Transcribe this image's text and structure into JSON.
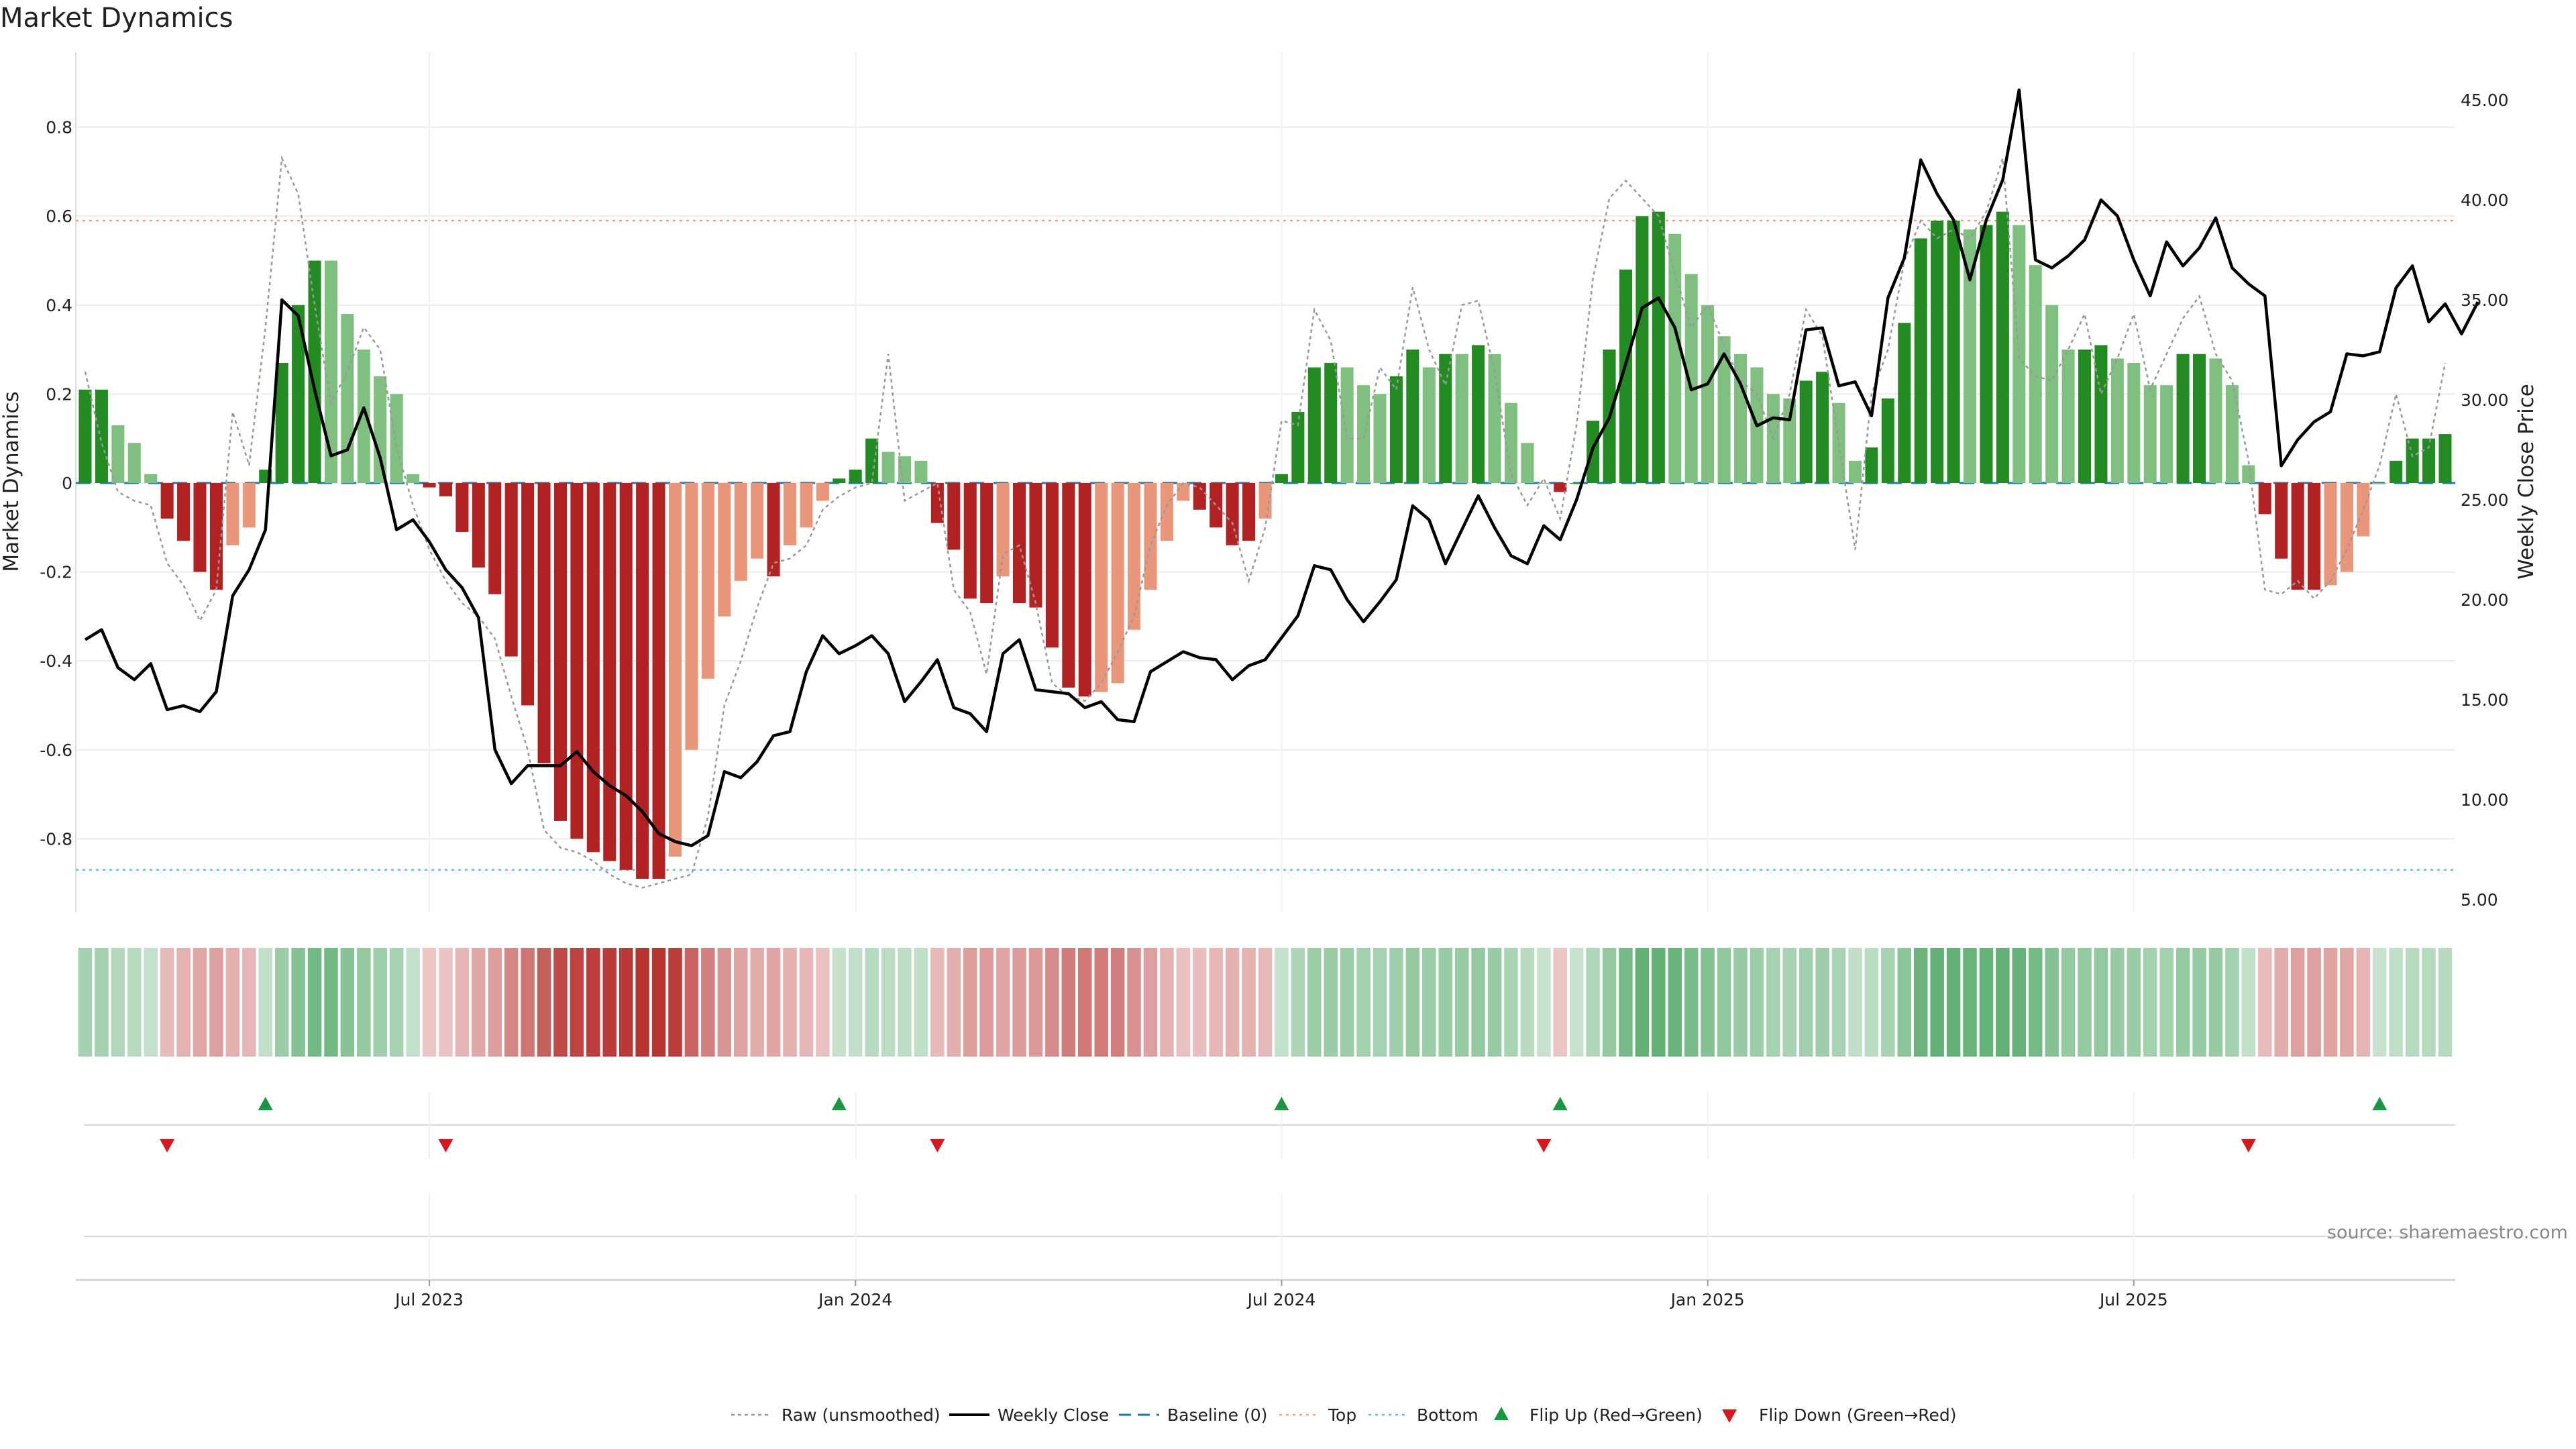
{
  "chart_data": {
    "type": "bar",
    "title": "Market Dynamics",
    "ylabel_left": "Market Dynamics",
    "ylabel_right": "Weekly Close Price",
    "source": "source: sharemaestro.com",
    "ylim_left": [
      -0.97,
      0.97
    ],
    "ylim_right": [
      4.0,
      47.0
    ],
    "left_ticks": [
      "0.8",
      "0.6",
      "0.4",
      "0.2",
      "0",
      "-0.2",
      "-0.4",
      "-0.6",
      "-0.8"
    ],
    "right_ticks": [
      "45.00",
      "40.00",
      "35.00",
      "30.00",
      "25.00",
      "20.00",
      "15.00",
      "10.00",
      "5.00"
    ],
    "x_tick_labels": [
      "Jul 2023",
      "Jan 2024",
      "Jul 2024",
      "Jan 2025",
      "Jul 2025"
    ],
    "x_tick_weeks": [
      21,
      47,
      73,
      99,
      125
    ],
    "top_level": 0.59,
    "bottom_level": -0.87,
    "grid": true,
    "legend_position": "bottom-center",
    "legend": [
      {
        "label": "Raw (unsmoothed)",
        "kind": "dotted-gray"
      },
      {
        "label": "Weekly Close",
        "kind": "solid-black"
      },
      {
        "label": "Baseline (0)",
        "kind": "dashed-blue"
      },
      {
        "label": "Top",
        "kind": "dotted-orange"
      },
      {
        "label": "Bottom",
        "kind": "dotted-cyan"
      },
      {
        "label": "Flip Up (Red→Green)",
        "kind": "triangle-up-green"
      },
      {
        "label": "Flip Down (Green→Red)",
        "kind": "triangle-down-red"
      }
    ],
    "colors": {
      "strong_green": "#228b22",
      "light_green": "#7fbf7f",
      "strong_red": "#b22222",
      "light_red": "#e9967a",
      "close_line": "#000000",
      "raw_line": "#999999",
      "top_line": "#f4a582",
      "bottom_line": "#5fc6c9",
      "baseline": "#1f77b4",
      "flip_up": "#1a9641",
      "flip_down": "#d7191c"
    },
    "momentum": [
      0.21,
      0.21,
      0.13,
      0.09,
      0.02,
      -0.08,
      -0.13,
      -0.2,
      -0.24,
      -0.14,
      -0.1,
      0.03,
      0.27,
      0.4,
      0.5,
      0.5,
      0.38,
      0.3,
      0.24,
      0.2,
      0.02,
      -0.01,
      -0.03,
      -0.11,
      -0.19,
      -0.25,
      -0.39,
      -0.5,
      -0.63,
      -0.76,
      -0.8,
      -0.83,
      -0.85,
      -0.87,
      -0.89,
      -0.89,
      -0.84,
      -0.6,
      -0.44,
      -0.3,
      -0.22,
      -0.17,
      -0.21,
      -0.14,
      -0.1,
      -0.04,
      0.01,
      0.03,
      0.1,
      0.07,
      0.06,
      0.05,
      -0.09,
      -0.15,
      -0.26,
      -0.27,
      -0.21,
      -0.27,
      -0.28,
      -0.37,
      -0.46,
      -0.48,
      -0.47,
      -0.45,
      -0.33,
      -0.24,
      -0.13,
      -0.04,
      -0.06,
      -0.1,
      -0.14,
      -0.13,
      -0.08,
      0.02,
      0.16,
      0.26,
      0.27,
      0.26,
      0.22,
      0.2,
      0.24,
      0.3,
      0.26,
      0.29,
      0.29,
      0.31,
      0.29,
      0.18,
      0.09,
      0.0,
      -0.02,
      0.0,
      0.14,
      0.3,
      0.48,
      0.6,
      0.61,
      0.56,
      0.47,
      0.4,
      0.33,
      0.29,
      0.26,
      0.2,
      0.19,
      0.23,
      0.25,
      0.18,
      0.05,
      0.08,
      0.19,
      0.36,
      0.55,
      0.59,
      0.59,
      0.57,
      0.58,
      0.61,
      0.58,
      0.49,
      0.4,
      0.3,
      0.3,
      0.31,
      0.28,
      0.27,
      0.22,
      0.22,
      0.29,
      0.29,
      0.28,
      0.22,
      0.04,
      -0.07,
      -0.17,
      -0.24,
      -0.24,
      -0.23,
      -0.2,
      -0.12,
      0.0,
      0.05,
      0.1,
      0.1,
      0.11
    ],
    "bar_shade": [
      "S",
      "S",
      "L",
      "L",
      "L",
      "S",
      "S",
      "S",
      "S",
      "L",
      "L",
      "S",
      "S",
      "S",
      "S",
      "L",
      "L",
      "L",
      "L",
      "L",
      "L",
      "S",
      "S",
      "S",
      "S",
      "S",
      "S",
      "S",
      "S",
      "S",
      "S",
      "S",
      "S",
      "S",
      "S",
      "S",
      "L",
      "L",
      "L",
      "L",
      "L",
      "L",
      "S",
      "L",
      "L",
      "L",
      "S",
      "S",
      "S",
      "L",
      "L",
      "L",
      "S",
      "S",
      "S",
      "S",
      "L",
      "S",
      "S",
      "S",
      "S",
      "S",
      "L",
      "L",
      "L",
      "L",
      "L",
      "L",
      "S",
      "S",
      "S",
      "S",
      "L",
      "S",
      "S",
      "S",
      "S",
      "L",
      "L",
      "L",
      "S",
      "S",
      "L",
      "S",
      "L",
      "S",
      "L",
      "L",
      "L",
      "L",
      "S",
      "S",
      "S",
      "S",
      "S",
      "S",
      "S",
      "L",
      "L",
      "L",
      "L",
      "L",
      "L",
      "L",
      "L",
      "S",
      "S",
      "L",
      "L",
      "S",
      "S",
      "S",
      "S",
      "S",
      "S",
      "L",
      "S",
      "S",
      "L",
      "L",
      "L",
      "L",
      "S",
      "S",
      "L",
      "L",
      "L",
      "L",
      "S",
      "S",
      "L",
      "L",
      "L",
      "S",
      "S",
      "S",
      "S",
      "L",
      "L",
      "L",
      "L",
      "S",
      "S",
      "S",
      "S"
    ],
    "close": [
      18.0,
      18.5,
      16.6,
      16.0,
      16.8,
      14.5,
      14.7,
      14.4,
      15.4,
      20.2,
      21.5,
      23.5,
      35.0,
      34.2,
      30.5,
      27.2,
      27.5,
      29.6,
      27.1,
      23.5,
      24.0,
      22.9,
      21.5,
      20.6,
      19.1,
      12.5,
      10.8,
      11.7,
      11.7,
      11.7,
      12.4,
      11.4,
      10.7,
      10.2,
      9.4,
      8.3,
      7.9,
      7.7,
      8.2,
      11.4,
      11.1,
      11.9,
      13.2,
      13.4,
      16.4,
      18.2,
      17.3,
      17.7,
      18.2,
      17.3,
      14.9,
      15.9,
      17.0,
      14.6,
      14.3,
      13.4,
      17.3,
      18.0,
      15.5,
      15.4,
      15.3,
      14.6,
      14.9,
      14.0,
      13.9,
      16.4,
      16.9,
      17.4,
      17.1,
      17.0,
      16.0,
      16.7,
      17.0,
      18.1,
      19.2,
      21.7,
      21.5,
      20.0,
      18.9,
      19.9,
      21.0,
      24.7,
      24.0,
      21.8,
      23.5,
      25.2,
      23.6,
      22.2,
      21.8,
      23.7,
      23.0,
      25.0,
      27.6,
      29.1,
      31.8,
      34.6,
      35.1,
      33.6,
      30.5,
      30.8,
      32.3,
      30.8,
      28.7,
      29.1,
      29.0,
      33.5,
      33.6,
      30.7,
      30.9,
      29.2,
      35.1,
      37.1,
      42.0,
      40.3,
      39.0,
      36.0,
      39.0,
      41.0,
      45.5,
      37.0,
      36.6,
      37.2,
      38.0,
      40.0,
      39.2,
      37.0,
      35.2,
      37.9,
      36.7,
      37.6,
      39.1,
      36.6,
      35.8,
      35.2,
      26.7,
      28.0,
      28.9,
      29.4,
      32.3,
      32.2,
      32.4,
      35.6,
      36.7,
      33.9,
      34.8,
      33.3,
      34.9
    ],
    "raw": [
      0.25,
      0.09,
      -0.02,
      -0.04,
      -0.05,
      -0.18,
      -0.23,
      -0.31,
      -0.24,
      0.16,
      0.04,
      0.35,
      0.73,
      0.65,
      0.4,
      0.18,
      0.25,
      0.35,
      0.3,
      0.08,
      -0.05,
      -0.15,
      -0.22,
      -0.27,
      -0.3,
      -0.35,
      -0.48,
      -0.6,
      -0.78,
      -0.82,
      -0.83,
      -0.85,
      -0.88,
      -0.9,
      -0.91,
      -0.9,
      -0.89,
      -0.88,
      -0.75,
      -0.5,
      -0.4,
      -0.28,
      -0.18,
      -0.17,
      -0.14,
      -0.06,
      -0.03,
      -0.01,
      0.0,
      0.29,
      -0.04,
      -0.02,
      0.0,
      -0.24,
      -0.29,
      -0.43,
      -0.16,
      -0.14,
      -0.27,
      -0.45,
      -0.48,
      -0.49,
      -0.45,
      -0.38,
      -0.3,
      -0.14,
      -0.05,
      0.0,
      -0.01,
      -0.05,
      -0.09,
      -0.22,
      -0.1,
      0.14,
      0.13,
      0.39,
      0.32,
      0.1,
      0.1,
      0.26,
      0.21,
      0.44,
      0.3,
      0.22,
      0.4,
      0.41,
      0.25,
      0.02,
      -0.05,
      0.01,
      -0.08,
      0.13,
      0.46,
      0.64,
      0.68,
      0.64,
      0.6,
      0.47,
      0.35,
      0.4,
      0.31,
      0.23,
      0.2,
      0.1,
      0.2,
      0.39,
      0.33,
      0.09,
      -0.15,
      0.2,
      0.3,
      0.5,
      0.59,
      0.55,
      0.57,
      0.55,
      0.61,
      0.73,
      0.28,
      0.24,
      0.23,
      0.3,
      0.38,
      0.2,
      0.28,
      0.38,
      0.21,
      0.29,
      0.37,
      0.42,
      0.29,
      0.23,
      0.05,
      -0.24,
      -0.25,
      -0.22,
      -0.26,
      -0.22,
      -0.15,
      -0.06,
      0.04,
      0.2,
      0.06,
      0.08,
      0.27
    ],
    "flip_up_weeks": [
      11,
      46,
      73,
      90,
      140
    ],
    "flip_down_weeks": [
      5,
      22,
      52,
      89,
      132
    ]
  }
}
